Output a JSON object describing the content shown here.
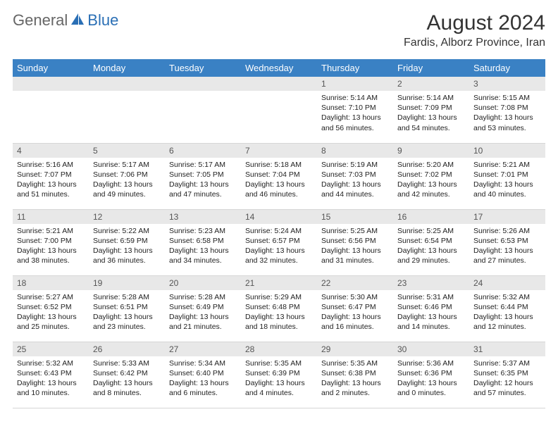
{
  "logo": {
    "part1": "General",
    "part2": "Blue"
  },
  "title": "August 2024",
  "location": "Fardis, Alborz Province, Iran",
  "colors": {
    "header_bg": "#3a81c4",
    "header_text": "#ffffff",
    "day_num_bg": "#e8e8e8",
    "day_num_text": "#555555",
    "body_text": "#222222",
    "logo_gray": "#666666",
    "logo_blue": "#2a6fb5"
  },
  "weekdays": [
    "Sunday",
    "Monday",
    "Tuesday",
    "Wednesday",
    "Thursday",
    "Friday",
    "Saturday"
  ],
  "weeks": [
    [
      null,
      null,
      null,
      null,
      {
        "n": "1",
        "sr": "5:14 AM",
        "ss": "7:10 PM",
        "dl": "13 hours and 56 minutes."
      },
      {
        "n": "2",
        "sr": "5:14 AM",
        "ss": "7:09 PM",
        "dl": "13 hours and 54 minutes."
      },
      {
        "n": "3",
        "sr": "5:15 AM",
        "ss": "7:08 PM",
        "dl": "13 hours and 53 minutes."
      }
    ],
    [
      {
        "n": "4",
        "sr": "5:16 AM",
        "ss": "7:07 PM",
        "dl": "13 hours and 51 minutes."
      },
      {
        "n": "5",
        "sr": "5:17 AM",
        "ss": "7:06 PM",
        "dl": "13 hours and 49 minutes."
      },
      {
        "n": "6",
        "sr": "5:17 AM",
        "ss": "7:05 PM",
        "dl": "13 hours and 47 minutes."
      },
      {
        "n": "7",
        "sr": "5:18 AM",
        "ss": "7:04 PM",
        "dl": "13 hours and 46 minutes."
      },
      {
        "n": "8",
        "sr": "5:19 AM",
        "ss": "7:03 PM",
        "dl": "13 hours and 44 minutes."
      },
      {
        "n": "9",
        "sr": "5:20 AM",
        "ss": "7:02 PM",
        "dl": "13 hours and 42 minutes."
      },
      {
        "n": "10",
        "sr": "5:21 AM",
        "ss": "7:01 PM",
        "dl": "13 hours and 40 minutes."
      }
    ],
    [
      {
        "n": "11",
        "sr": "5:21 AM",
        "ss": "7:00 PM",
        "dl": "13 hours and 38 minutes."
      },
      {
        "n": "12",
        "sr": "5:22 AM",
        "ss": "6:59 PM",
        "dl": "13 hours and 36 minutes."
      },
      {
        "n": "13",
        "sr": "5:23 AM",
        "ss": "6:58 PM",
        "dl": "13 hours and 34 minutes."
      },
      {
        "n": "14",
        "sr": "5:24 AM",
        "ss": "6:57 PM",
        "dl": "13 hours and 32 minutes."
      },
      {
        "n": "15",
        "sr": "5:25 AM",
        "ss": "6:56 PM",
        "dl": "13 hours and 31 minutes."
      },
      {
        "n": "16",
        "sr": "5:25 AM",
        "ss": "6:54 PM",
        "dl": "13 hours and 29 minutes."
      },
      {
        "n": "17",
        "sr": "5:26 AM",
        "ss": "6:53 PM",
        "dl": "13 hours and 27 minutes."
      }
    ],
    [
      {
        "n": "18",
        "sr": "5:27 AM",
        "ss": "6:52 PM",
        "dl": "13 hours and 25 minutes."
      },
      {
        "n": "19",
        "sr": "5:28 AM",
        "ss": "6:51 PM",
        "dl": "13 hours and 23 minutes."
      },
      {
        "n": "20",
        "sr": "5:28 AM",
        "ss": "6:49 PM",
        "dl": "13 hours and 21 minutes."
      },
      {
        "n": "21",
        "sr": "5:29 AM",
        "ss": "6:48 PM",
        "dl": "13 hours and 18 minutes."
      },
      {
        "n": "22",
        "sr": "5:30 AM",
        "ss": "6:47 PM",
        "dl": "13 hours and 16 minutes."
      },
      {
        "n": "23",
        "sr": "5:31 AM",
        "ss": "6:46 PM",
        "dl": "13 hours and 14 minutes."
      },
      {
        "n": "24",
        "sr": "5:32 AM",
        "ss": "6:44 PM",
        "dl": "13 hours and 12 minutes."
      }
    ],
    [
      {
        "n": "25",
        "sr": "5:32 AM",
        "ss": "6:43 PM",
        "dl": "13 hours and 10 minutes."
      },
      {
        "n": "26",
        "sr": "5:33 AM",
        "ss": "6:42 PM",
        "dl": "13 hours and 8 minutes."
      },
      {
        "n": "27",
        "sr": "5:34 AM",
        "ss": "6:40 PM",
        "dl": "13 hours and 6 minutes."
      },
      {
        "n": "28",
        "sr": "5:35 AM",
        "ss": "6:39 PM",
        "dl": "13 hours and 4 minutes."
      },
      {
        "n": "29",
        "sr": "5:35 AM",
        "ss": "6:38 PM",
        "dl": "13 hours and 2 minutes."
      },
      {
        "n": "30",
        "sr": "5:36 AM",
        "ss": "6:36 PM",
        "dl": "13 hours and 0 minutes."
      },
      {
        "n": "31",
        "sr": "5:37 AM",
        "ss": "6:35 PM",
        "dl": "12 hours and 57 minutes."
      }
    ]
  ],
  "labels": {
    "sunrise": "Sunrise:",
    "sunset": "Sunset:",
    "daylight": "Daylight:"
  }
}
